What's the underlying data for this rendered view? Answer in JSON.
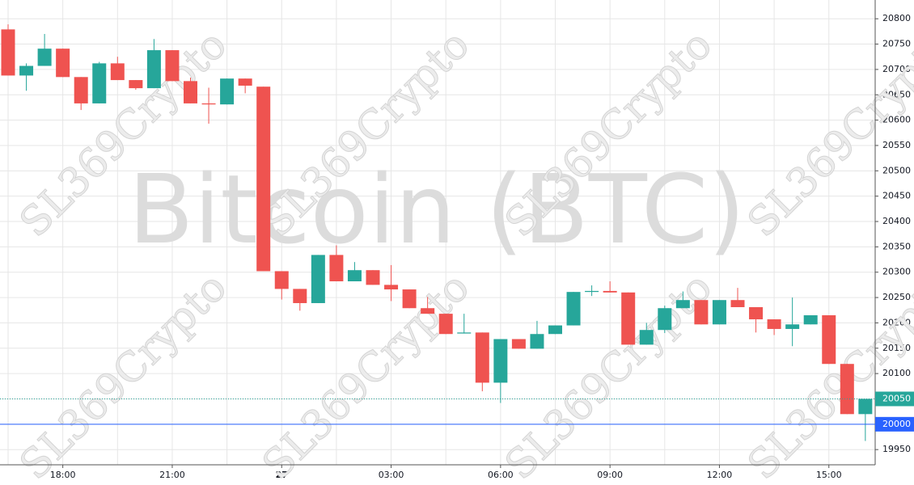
{
  "chart_data": {
    "type": "candlestick",
    "watermark": "Bitcoin (BTC)",
    "brand": "SL369Crypto",
    "categories": [
      null,
      null,
      null,
      "18:00",
      null,
      null,
      null,
      null,
      null,
      "21:00",
      null,
      null,
      null,
      null,
      null,
      "27",
      null,
      null,
      null,
      null,
      null,
      "03:00",
      null,
      null,
      null,
      null,
      null,
      "06:00",
      null,
      null,
      null,
      null,
      null,
      "09:00",
      null,
      null,
      null,
      null,
      null,
      "12:00",
      null,
      null,
      null,
      null,
      null,
      "15:00",
      null,
      null
    ],
    "open": [
      20779,
      20688,
      20707,
      20741,
      20685,
      20633,
      20712,
      20679,
      20663,
      20738,
      20677,
      20633,
      20631,
      20682,
      20666,
      20302,
      20267,
      20239,
      20334,
      20282,
      20304,
      20275,
      20266,
      20229,
      20218,
      20179,
      20181,
      20082,
      20168,
      20149,
      20178,
      20195,
      20261,
      20263,
      20260,
      20157,
      20186,
      20229,
      20245,
      20197,
      20245,
      20231,
      20207,
      20188,
      20197,
      20215,
      20119,
      20020
    ],
    "high": [
      20789,
      20712,
      20770,
      20741,
      20685,
      20715,
      20725,
      20679,
      20760,
      20738,
      20684,
      20664,
      20682,
      20682,
      20666,
      20302,
      20267,
      20334,
      20353,
      20320,
      20304,
      20314,
      20266,
      20251,
      20218,
      20218,
      20181,
      20168,
      20168,
      20204,
      20195,
      20261,
      20274,
      20282,
      20260,
      20200,
      20234,
      20262,
      20245,
      20245,
      20269,
      20231,
      20207,
      20250,
      20215,
      20215,
      20119,
      20050
    ],
    "low": [
      20688,
      20658,
      20707,
      20685,
      20620,
      20633,
      20679,
      20660,
      20663,
      20677,
      20633,
      20593,
      20631,
      20653,
      20302,
      20246,
      20224,
      20239,
      20282,
      20282,
      20275,
      20243,
      20229,
      20218,
      20178,
      20179,
      20065,
      20042,
      20149,
      20149,
      20178,
      20195,
      20253,
      20260,
      20157,
      20157,
      20180,
      20229,
      20197,
      20197,
      20231,
      20181,
      20176,
      20154,
      20197,
      20119,
      20020,
      19967
    ],
    "close": [
      20688,
      20707,
      20741,
      20685,
      20633,
      20712,
      20679,
      20663,
      20738,
      20677,
      20633,
      20631,
      20682,
      20668,
      20302,
      20267,
      20239,
      20334,
      20282,
      20304,
      20275,
      20266,
      20229,
      20218,
      20178,
      20181,
      20082,
      20168,
      20149,
      20178,
      20195,
      20261,
      20263,
      20260,
      20157,
      20186,
      20229,
      20245,
      20197,
      20245,
      20231,
      20207,
      20188,
      20197,
      20215,
      20119,
      20020,
      20050
    ],
    "up_color": "#26a69a",
    "down_color": "#ef5350",
    "last_price": 20050,
    "price_line": 20000,
    "price_line_color": "#2962ff",
    "ylim": [
      19920,
      20837
    ],
    "yticks": [
      19950,
      20000,
      20050,
      20100,
      20150,
      20200,
      20250,
      20300,
      20350,
      20400,
      20450,
      20500,
      20550,
      20600,
      20650,
      20700,
      20750,
      20800
    ],
    "grid": true
  }
}
